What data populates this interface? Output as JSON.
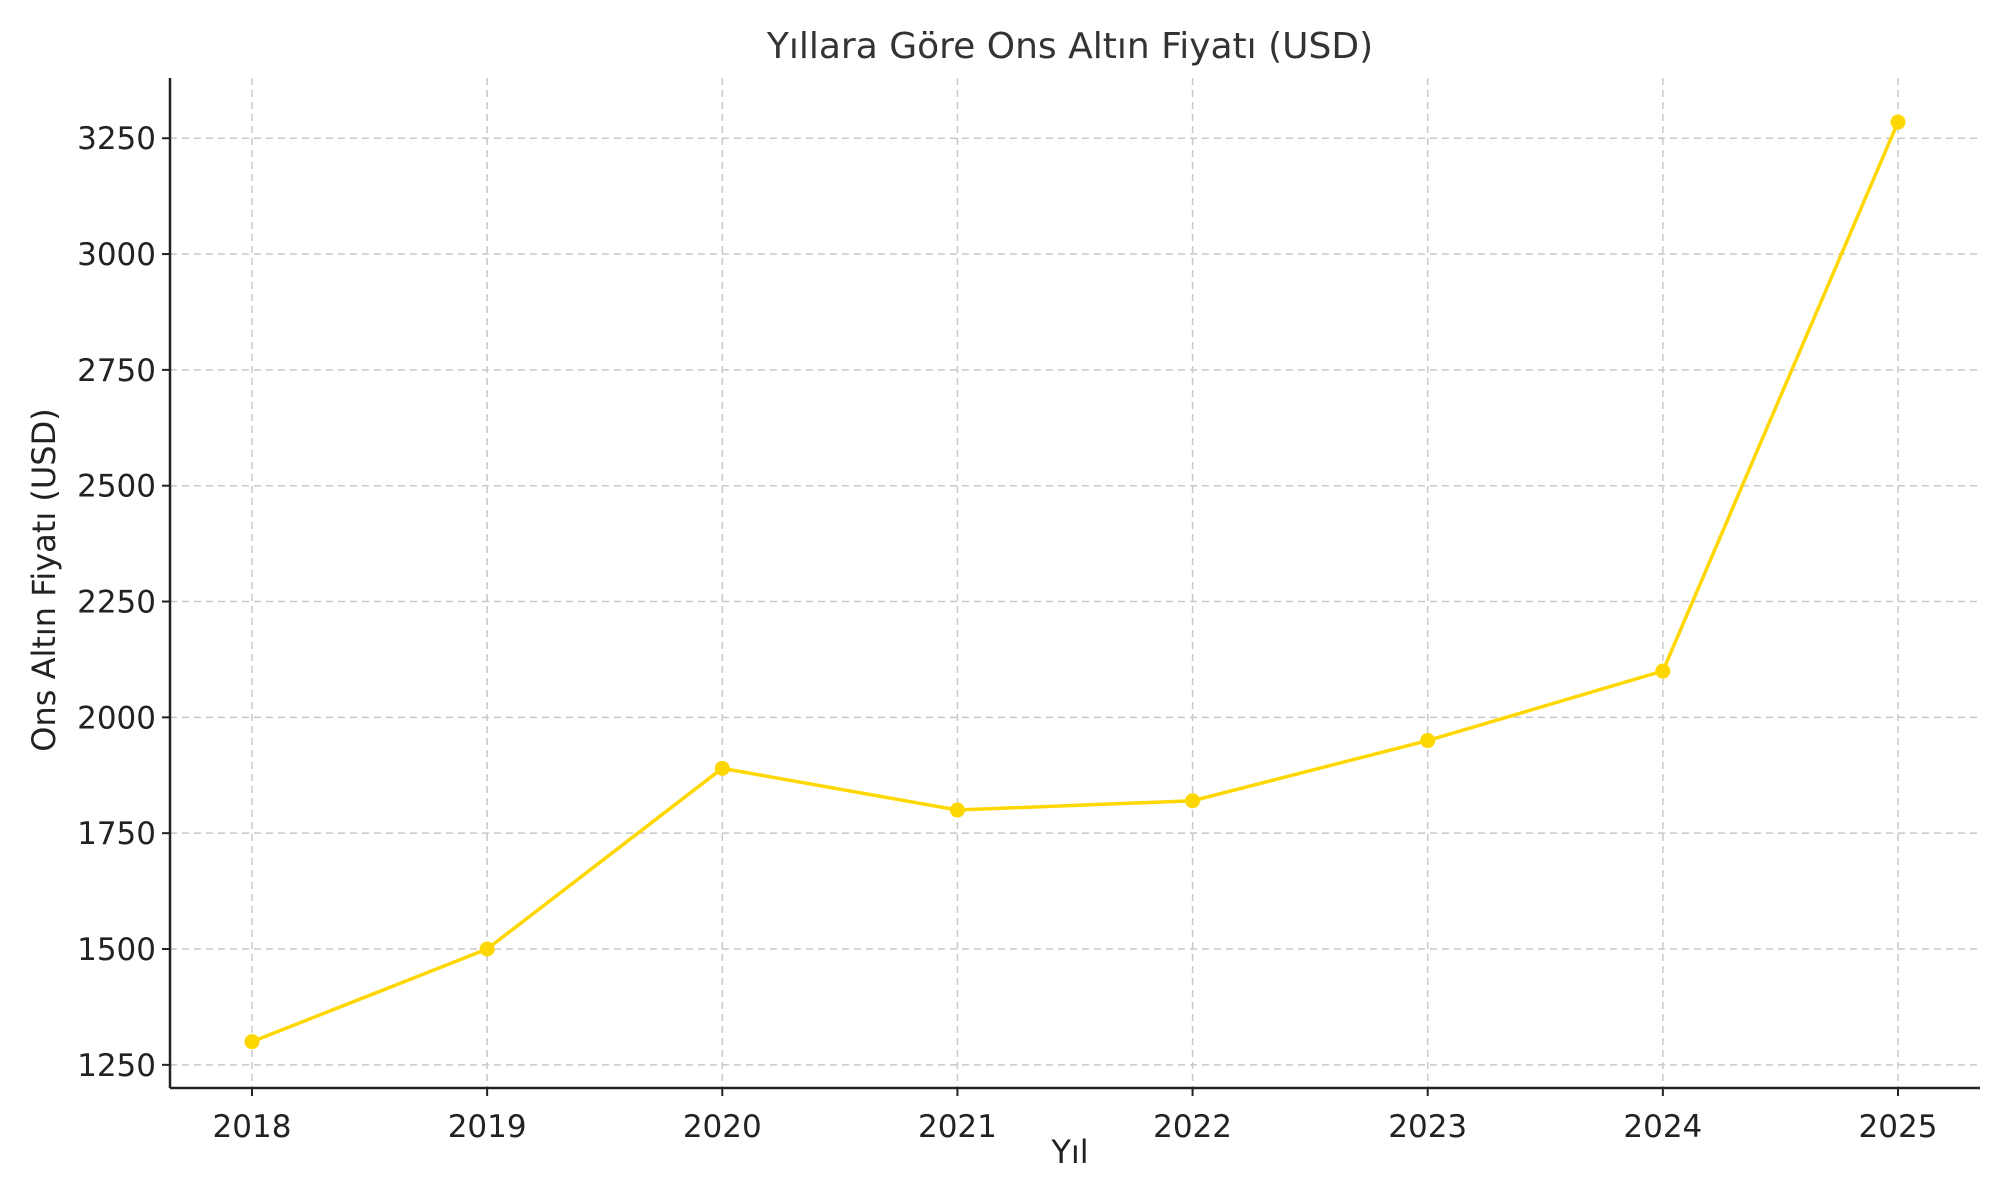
{
  "chart_data": {
    "type": "line",
    "title": "Yıllara Göre Ons Altın Fiyatı (USD)",
    "xlabel": "Yıl",
    "ylabel": "Ons Altın Fiyatı (USD)",
    "categories": [
      "2018",
      "2019",
      "2020",
      "2021",
      "2022",
      "2023",
      "2024",
      "2025"
    ],
    "series": [
      {
        "values": [
          1300,
          1500,
          1890,
          1800,
          1820,
          1950,
          2100,
          3285
        ],
        "color": "#FFD700",
        "marker": "circle"
      }
    ],
    "yticks": [
      1250,
      1500,
      1750,
      2000,
      2250,
      2500,
      2750,
      3000,
      3250
    ],
    "ylim": [
      1200,
      3380
    ],
    "grid": true,
    "grid_style": "dashed",
    "legend": false
  }
}
